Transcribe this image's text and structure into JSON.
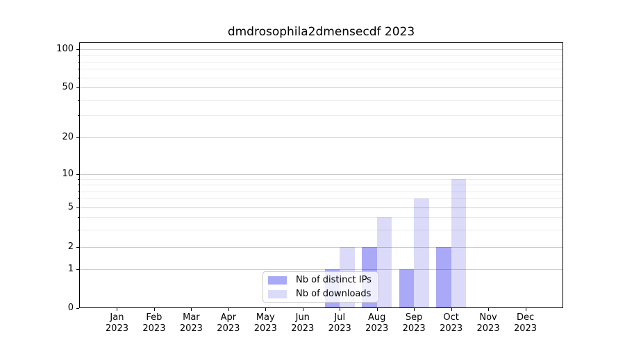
{
  "chart_data": {
    "type": "bar",
    "title": "dmdrosophila2dmensecdf 2023",
    "categories": [
      "Jan",
      "Feb",
      "Mar",
      "Apr",
      "May",
      "Jun",
      "Jul",
      "Aug",
      "Sep",
      "Oct",
      "Nov",
      "Dec"
    ],
    "x_tick_year": "2023",
    "series": [
      {
        "name": "Nb of distinct IPs",
        "color": "#a9a9f7",
        "values": [
          0,
          0,
          0,
          0,
          0,
          0,
          1,
          2,
          1,
          2,
          0,
          0
        ]
      },
      {
        "name": "Nb of downloads",
        "color": "#dbdbf9",
        "values": [
          0,
          0,
          0,
          0,
          0,
          0,
          2,
          4,
          6,
          9,
          0,
          0
        ]
      }
    ],
    "y_axis": {
      "scale": "symlog",
      "major_ticks": [
        0,
        1,
        2,
        5,
        10,
        20,
        50,
        100
      ],
      "major_tick_labels": [
        "0",
        "1",
        "2",
        "5",
        "10",
        "20",
        "50",
        "100"
      ],
      "minor_ticks": [
        3,
        4,
        6,
        7,
        8,
        9,
        30,
        40,
        60,
        70,
        80,
        90
      ],
      "ylim_top": 130
    },
    "legend_position": "lower center inside plot",
    "grid": true,
    "colors": {
      "background": "#ffffff",
      "spine": "#000000",
      "grid_major": "#cccccc",
      "grid_minor": "#ebebeb"
    }
  }
}
